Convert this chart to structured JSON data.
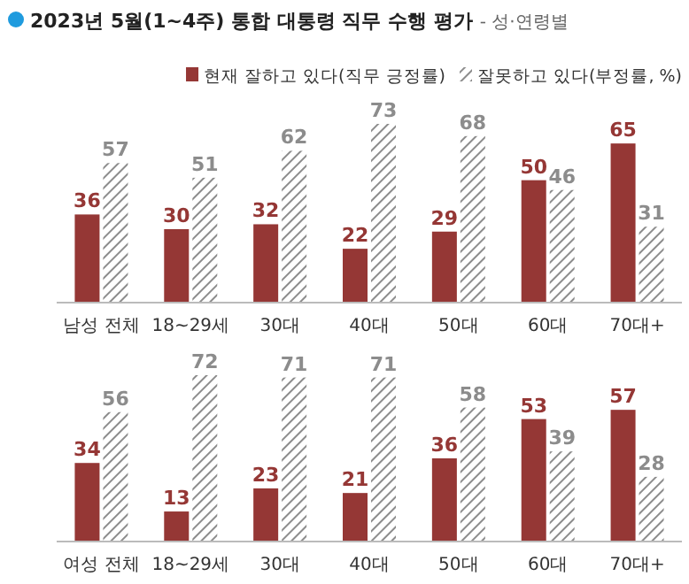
{
  "chart_data": [
    {
      "type": "bar",
      "title": "2023년 5월(1~4주) 통합 대통령 직무 수행 평가",
      "subtitle": "- 성·연령별",
      "categories": [
        "남성 전체",
        "18~29세",
        "30대",
        "40대",
        "50대",
        "60대",
        "70대+"
      ],
      "series": [
        {
          "name": "현재 잘하고 있다(직무 긍정률)",
          "color": "#953735",
          "values": [
            36,
            30,
            32,
            22,
            29,
            50,
            65
          ]
        },
        {
          "name": "잘못하고 있다(부정률, %)",
          "color": "#8c8c8c",
          "values": [
            57,
            51,
            62,
            73,
            68,
            46,
            31
          ]
        }
      ],
      "data_labels": true,
      "legend": "top right",
      "grid": false
    },
    {
      "type": "bar",
      "categories": [
        "여성 전체",
        "18~29세",
        "30대",
        "40대",
        "50대",
        "60대",
        "70대+"
      ],
      "series": [
        {
          "color": "#953735",
          "values": [
            34,
            13,
            23,
            21,
            36,
            53,
            57
          ]
        },
        {
          "color": "#8c8c8c",
          "values": [
            56,
            72,
            71,
            71,
            58,
            39,
            28
          ]
        }
      ],
      "data_labels": true,
      "legend": false,
      "grid": false
    }
  ]
}
